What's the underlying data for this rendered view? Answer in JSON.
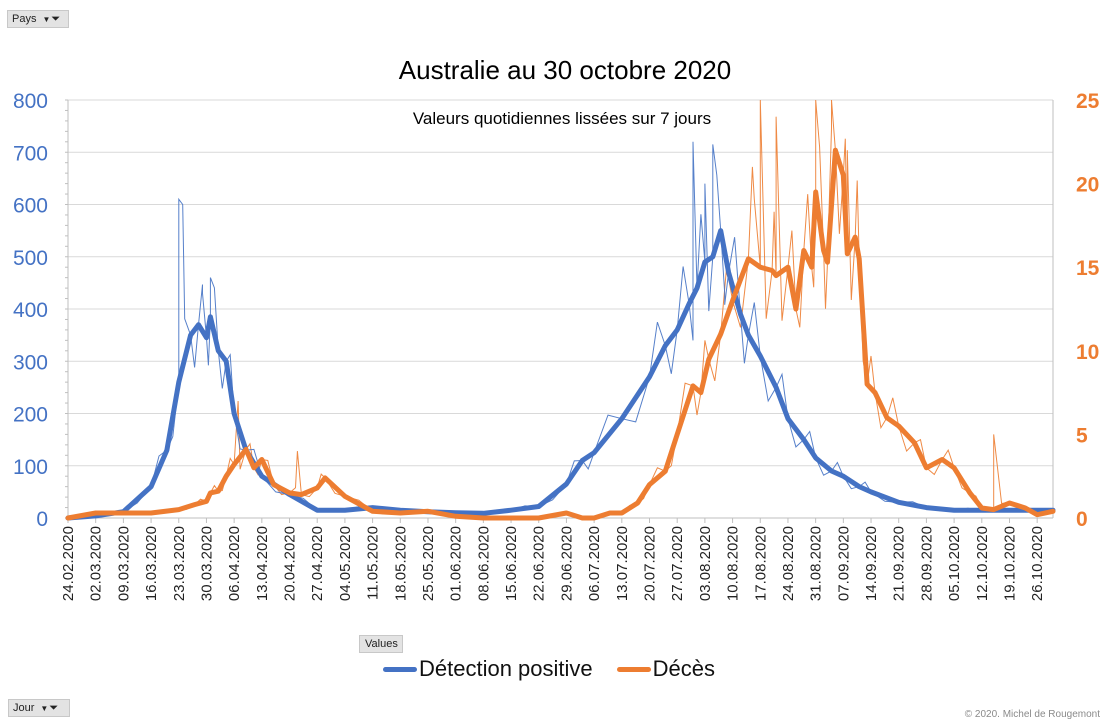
{
  "filters": {
    "pays_label": "Pays",
    "jour_label": "Jour",
    "values_label": "Values"
  },
  "copyright": "© 2020. Michel de Rougemont",
  "colors": {
    "detection": "#4472c4",
    "deces": "#ed7d31",
    "grid": "#d9d9d9"
  },
  "chart_data": {
    "type": "line",
    "title": "Australie au 30 octobre 2020",
    "subtitle": "Valeurs quotidiennes lissées sur 7 jours",
    "x_start": "24.02.2020",
    "x_end": "30.10.2020",
    "x_tick_labels": [
      "24.02.2020",
      "02.03.2020",
      "09.03.2020",
      "16.03.2020",
      "23.03.2020",
      "30.03.2020",
      "06.04.2020",
      "13.04.2020",
      "20.04.2020",
      "27.04.2020",
      "04.05.2020",
      "11.05.2020",
      "18.05.2020",
      "25.05.2020",
      "01.06.2020",
      "08.06.2020",
      "15.06.2020",
      "22.06.2020",
      "29.06.2020",
      "06.07.2020",
      "13.07.2020",
      "20.07.2020",
      "27.07.2020",
      "03.08.2020",
      "10.08.2020",
      "17.08.2020",
      "24.08.2020",
      "31.08.2020",
      "07.09.2020",
      "14.09.2020",
      "21.09.2020",
      "28.09.2020",
      "05.10.2020",
      "12.10.2020",
      "19.10.2020",
      "26.10.2020"
    ],
    "y_left": {
      "ylim": [
        0,
        800
      ],
      "ticks": [
        0,
        100,
        200,
        300,
        400,
        500,
        600,
        700,
        800
      ]
    },
    "y_right": {
      "ylim": [
        0,
        25
      ],
      "ticks": [
        0,
        5,
        10,
        15,
        20,
        25
      ]
    },
    "legend": {
      "position": "bottom"
    },
    "series": [
      {
        "name": "Détection positive",
        "axis": "left",
        "color": "#4472c4",
        "smoothed": [
          [
            "24.02.2020",
            0
          ],
          [
            "02.03.2020",
            4
          ],
          [
            "09.03.2020",
            12
          ],
          [
            "16.03.2020",
            60
          ],
          [
            "20.03.2020",
            130
          ],
          [
            "23.03.2020",
            260
          ],
          [
            "26.03.2020",
            350
          ],
          [
            "28.03.2020",
            370
          ],
          [
            "30.03.2020",
            345
          ],
          [
            "31.03.2020",
            385
          ],
          [
            "02.04.2020",
            320
          ],
          [
            "04.04.2020",
            300
          ],
          [
            "06.04.2020",
            200
          ],
          [
            "09.04.2020",
            130
          ],
          [
            "13.04.2020",
            80
          ],
          [
            "20.04.2020",
            45
          ],
          [
            "27.04.2020",
            15
          ],
          [
            "04.05.2020",
            15
          ],
          [
            "11.05.2020",
            20
          ],
          [
            "18.05.2020",
            15
          ],
          [
            "25.05.2020",
            12
          ],
          [
            "01.06.2020",
            10
          ],
          [
            "08.06.2020",
            9
          ],
          [
            "15.06.2020",
            15
          ],
          [
            "22.06.2020",
            22
          ],
          [
            "29.06.2020",
            65
          ],
          [
            "03.07.2020",
            110
          ],
          [
            "06.07.2020",
            125
          ],
          [
            "13.07.2020",
            190
          ],
          [
            "20.07.2020",
            270
          ],
          [
            "24.07.2020",
            330
          ],
          [
            "27.07.2020",
            360
          ],
          [
            "30.07.2020",
            410
          ],
          [
            "01.08.2020",
            440
          ],
          [
            "03.08.2020",
            490
          ],
          [
            "05.08.2020",
            500
          ],
          [
            "07.08.2020",
            550
          ],
          [
            "09.08.2020",
            470
          ],
          [
            "12.08.2020",
            390
          ],
          [
            "14.08.2020",
            350
          ],
          [
            "17.08.2020",
            310
          ],
          [
            "21.08.2020",
            250
          ],
          [
            "24.08.2020",
            190
          ],
          [
            "28.08.2020",
            150
          ],
          [
            "31.08.2020",
            115
          ],
          [
            "04.09.2020",
            90
          ],
          [
            "07.09.2020",
            80
          ],
          [
            "11.09.2020",
            60
          ],
          [
            "14.09.2020",
            50
          ],
          [
            "21.09.2020",
            30
          ],
          [
            "28.09.2020",
            20
          ],
          [
            "05.10.2020",
            15
          ],
          [
            "12.10.2020",
            15
          ],
          [
            "19.10.2020",
            15
          ],
          [
            "26.10.2020",
            15
          ],
          [
            "30.10.2020",
            15
          ]
        ],
        "daily_peaks": [
          [
            "23.03.2020",
            610
          ],
          [
            "24.03.2020",
            600
          ],
          [
            "29.03.2020",
            430
          ],
          [
            "31.03.2020",
            460
          ],
          [
            "31.07.2020",
            720
          ],
          [
            "03.08.2020",
            640
          ],
          [
            "05.08.2020",
            715
          ],
          [
            "08.08.2020",
            430
          ]
        ]
      },
      {
        "name": "Décès",
        "axis": "right",
        "color": "#ed7d31",
        "smoothed": [
          [
            "24.02.2020",
            0
          ],
          [
            "02.03.2020",
            0.3
          ],
          [
            "09.03.2020",
            0.3
          ],
          [
            "16.03.2020",
            0.3
          ],
          [
            "23.03.2020",
            0.5
          ],
          [
            "27.03.2020",
            0.8
          ],
          [
            "30.03.2020",
            1.0
          ],
          [
            "31.03.2020",
            1.5
          ],
          [
            "02.04.2020",
            1.6
          ],
          [
            "04.04.2020",
            2.5
          ],
          [
            "06.04.2020",
            3.2
          ],
          [
            "09.04.2020",
            4.1
          ],
          [
            "11.04.2020",
            3.0
          ],
          [
            "13.04.2020",
            3.5
          ],
          [
            "16.04.2020",
            2.0
          ],
          [
            "20.04.2020",
            1.5
          ],
          [
            "23.04.2020",
            1.4
          ],
          [
            "27.04.2020",
            1.8
          ],
          [
            "29.04.2020",
            2.4
          ],
          [
            "04.05.2020",
            1.3
          ],
          [
            "11.05.2020",
            0.4
          ],
          [
            "18.05.2020",
            0.3
          ],
          [
            "25.05.2020",
            0.4
          ],
          [
            "01.06.2020",
            0.1
          ],
          [
            "08.06.2020",
            0
          ],
          [
            "15.06.2020",
            0
          ],
          [
            "22.06.2020",
            0
          ],
          [
            "29.06.2020",
            0.3
          ],
          [
            "03.07.2020",
            0
          ],
          [
            "06.07.2020",
            0
          ],
          [
            "10.07.2020",
            0.3
          ],
          [
            "13.07.2020",
            0.3
          ],
          [
            "17.07.2020",
            0.9
          ],
          [
            "20.07.2020",
            2.0
          ],
          [
            "24.07.2020",
            2.8
          ],
          [
            "27.07.2020",
            5.0
          ],
          [
            "31.07.2020",
            7.9
          ],
          [
            "02.08.2020",
            7.5
          ],
          [
            "04.08.2020",
            9.5
          ],
          [
            "07.08.2020",
            11.0
          ],
          [
            "10.08.2020",
            13.0
          ],
          [
            "14.08.2020",
            15.5
          ],
          [
            "17.08.2020",
            15.0
          ],
          [
            "20.08.2020",
            14.8
          ],
          [
            "21.08.2020",
            14.5
          ],
          [
            "24.08.2020",
            15.0
          ],
          [
            "26.08.2020",
            12.5
          ],
          [
            "28.08.2020",
            16.0
          ],
          [
            "30.08.2020",
            15.0
          ],
          [
            "31.08.2020",
            19.5
          ],
          [
            "02.09.2020",
            16.0
          ],
          [
            "03.09.2020",
            15.3
          ],
          [
            "05.09.2020",
            22.0
          ],
          [
            "07.09.2020",
            20.5
          ],
          [
            "08.09.2020",
            15.8
          ],
          [
            "10.09.2020",
            16.8
          ],
          [
            "11.09.2020",
            15.5
          ],
          [
            "13.09.2020",
            8.0
          ],
          [
            "15.09.2020",
            7.5
          ],
          [
            "18.09.2020",
            6.0
          ],
          [
            "21.09.2020",
            5.5
          ],
          [
            "25.09.2020",
            4.5
          ],
          [
            "28.09.2020",
            3.0
          ],
          [
            "02.10.2020",
            3.5
          ],
          [
            "05.10.2020",
            3.0
          ],
          [
            "09.10.2020",
            1.5
          ],
          [
            "12.10.2020",
            0.6
          ],
          [
            "15.10.2020",
            0.5
          ],
          [
            "19.10.2020",
            0.9
          ],
          [
            "23.10.2020",
            0.6
          ],
          [
            "26.10.2020",
            0.2
          ],
          [
            "30.10.2020",
            0.4
          ]
        ],
        "daily_peaks": [
          [
            "07.04.2020",
            7
          ],
          [
            "22.04.2020",
            4
          ],
          [
            "15.08.2020",
            21
          ],
          [
            "17.08.2020",
            25
          ],
          [
            "21.08.2020",
            24
          ],
          [
            "31.08.2020",
            25
          ],
          [
            "04.09.2020",
            25
          ],
          [
            "08.09.2020",
            22
          ],
          [
            "15.10.2020",
            5
          ]
        ]
      }
    ]
  }
}
